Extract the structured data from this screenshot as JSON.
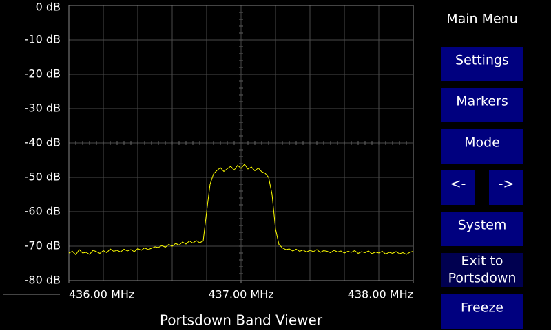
{
  "chart_data": {
    "type": "line",
    "title": "Portsdown Band Viewer",
    "x": [
      436,
      436.02,
      436.04,
      436.06,
      436.08,
      436.1,
      436.12,
      436.14,
      436.16,
      436.18,
      436.2,
      436.22,
      436.24,
      436.26,
      436.28,
      436.3,
      436.32,
      436.34,
      436.36,
      436.38,
      436.4,
      436.42,
      436.44,
      436.46,
      436.48,
      436.5,
      436.52,
      436.54,
      436.56,
      436.58,
      436.6,
      436.62,
      436.64,
      436.66,
      436.68,
      436.7,
      436.72,
      436.74,
      436.76,
      436.78,
      436.8,
      436.82,
      436.84,
      436.86,
      436.88,
      436.9,
      436.92,
      436.94,
      436.96,
      436.98,
      437,
      437.02,
      437.04,
      437.06,
      437.08,
      437.1,
      437.12,
      437.14,
      437.16,
      437.18,
      437.2,
      437.22,
      437.24,
      437.26,
      437.28,
      437.3,
      437.32,
      437.34,
      437.36,
      437.38,
      437.4,
      437.42,
      437.44,
      437.46,
      437.48,
      437.5,
      437.52,
      437.54,
      437.56,
      437.58,
      437.6,
      437.62,
      437.64,
      437.66,
      437.68,
      437.7,
      437.72,
      437.74,
      437.76,
      437.78,
      437.8,
      437.82,
      437.84,
      437.86,
      437.88,
      437.9,
      437.92,
      437.94,
      437.96,
      437.98,
      438
    ],
    "values": [
      -72,
      -71.5,
      -72.5,
      -71,
      -72,
      -71.8,
      -72.4,
      -71.2,
      -71.6,
      -72.1,
      -71.3,
      -71.9,
      -70.8,
      -71.5,
      -71.2,
      -71.7,
      -70.9,
      -71.4,
      -71,
      -71.6,
      -70.7,
      -71.2,
      -70.5,
      -71,
      -70.6,
      -70.2,
      -70.4,
      -69.8,
      -70.3,
      -69.5,
      -70,
      -69.2,
      -69.7,
      -68.8,
      -69.4,
      -68.5,
      -69.1,
      -68.4,
      -69,
      -68.5,
      -60,
      -52,
      -49,
      -48,
      -47.2,
      -48.3,
      -47.5,
      -46.8,
      -47.9,
      -46.5,
      -47.4,
      -46.2,
      -47.6,
      -47,
      -48.1,
      -47.3,
      -48.4,
      -48.8,
      -50,
      -55,
      -65,
      -69.5,
      -70.5,
      -71,
      -70.8,
      -71.4,
      -70.9,
      -71.5,
      -71.1,
      -71.7,
      -71.2,
      -71.6,
      -71,
      -71.8,
      -71.3,
      -71.5,
      -71.9,
      -71.2,
      -71.7,
      -71.4,
      -72,
      -71.5,
      -71.8,
      -71.3,
      -72.1,
      -71.6,
      -71.9,
      -71.4,
      -72.2,
      -71.7,
      -72,
      -71.5,
      -72.3,
      -71.8,
      -72.1,
      -71.6,
      -72.2,
      -71.9,
      -72.4,
      -71.8,
      -71.5
    ],
    "color": "#ffff00",
    "xlim": [
      436,
      438
    ],
    "xticks": [
      {
        "value": 436,
        "label": "436.00 MHz"
      },
      {
        "value": 437,
        "label": "437.00 MHz"
      },
      {
        "value": 438,
        "label": "438.00 MHz"
      }
    ],
    "ylim": [
      -80,
      0
    ],
    "yticks": [
      {
        "value": 0,
        "label": "0 dB"
      },
      {
        "value": -10,
        "label": "-10 dB"
      },
      {
        "value": -20,
        "label": "-20 dB"
      },
      {
        "value": -30,
        "label": "-30 dB"
      },
      {
        "value": -40,
        "label": "-40 dB"
      },
      {
        "value": -50,
        "label": "-50 dB"
      },
      {
        "value": -60,
        "label": "-60 dB"
      },
      {
        "value": -70,
        "label": "-70 dB"
      },
      {
        "value": -80,
        "label": "-80 dB"
      }
    ],
    "grid": true
  },
  "menu": {
    "title": "Main Menu",
    "buttons": [
      {
        "label": "Settings"
      },
      {
        "label": "Markers"
      },
      {
        "label": "Mode"
      },
      {
        "label": "<-"
      },
      {
        "label": "->"
      },
      {
        "label": "System"
      },
      {
        "label_lines": [
          "Exit to",
          "Portsdown"
        ]
      },
      {
        "label": "Freeze"
      }
    ]
  }
}
